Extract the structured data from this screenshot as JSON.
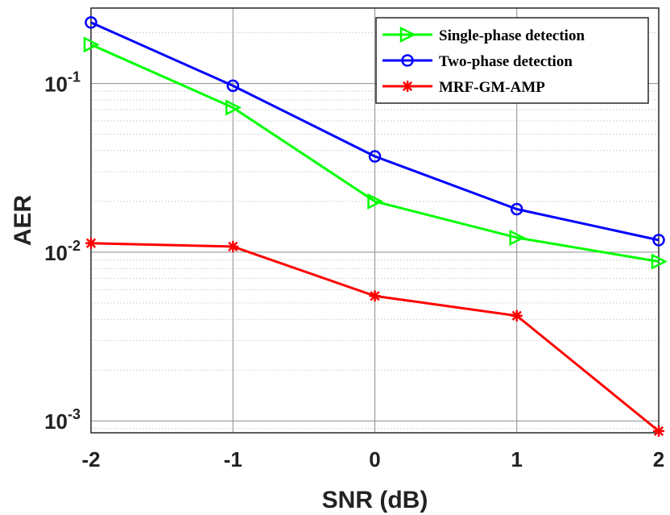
{
  "chart_data": {
    "type": "line",
    "title": "",
    "xlabel": "SNR (dB)",
    "ylabel": "AER",
    "x": [
      -2,
      -1,
      0,
      1,
      2
    ],
    "x_ticks": [
      "-2",
      "-1",
      "0",
      "1",
      "2"
    ],
    "xlim": [
      -2,
      2
    ],
    "y_scale": "log",
    "ylim": [
      0.00085,
      0.28
    ],
    "y_ticks": [
      {
        "value": 0.1,
        "base": "10",
        "exp": "-1"
      },
      {
        "value": 0.01,
        "base": "10",
        "exp": "-2"
      },
      {
        "value": 0.001,
        "base": "10",
        "exp": "-3"
      }
    ],
    "grid": true,
    "minor_grid": true,
    "legend_position": "top-right",
    "series": [
      {
        "name": "Single-phase detection",
        "color": "#00ff00",
        "marker": "triangle-right",
        "values": [
          0.17,
          0.072,
          0.02,
          0.0122,
          0.0088
        ]
      },
      {
        "name": "Two-phase detection",
        "color": "#0000ff",
        "marker": "circle",
        "values": [
          0.23,
          0.097,
          0.037,
          0.018,
          0.0118
        ]
      },
      {
        "name": "MRF-GM-AMP",
        "color": "#ff0000",
        "marker": "asterisk",
        "values": [
          0.0113,
          0.0108,
          0.0055,
          0.0042,
          0.00087
        ]
      }
    ]
  }
}
